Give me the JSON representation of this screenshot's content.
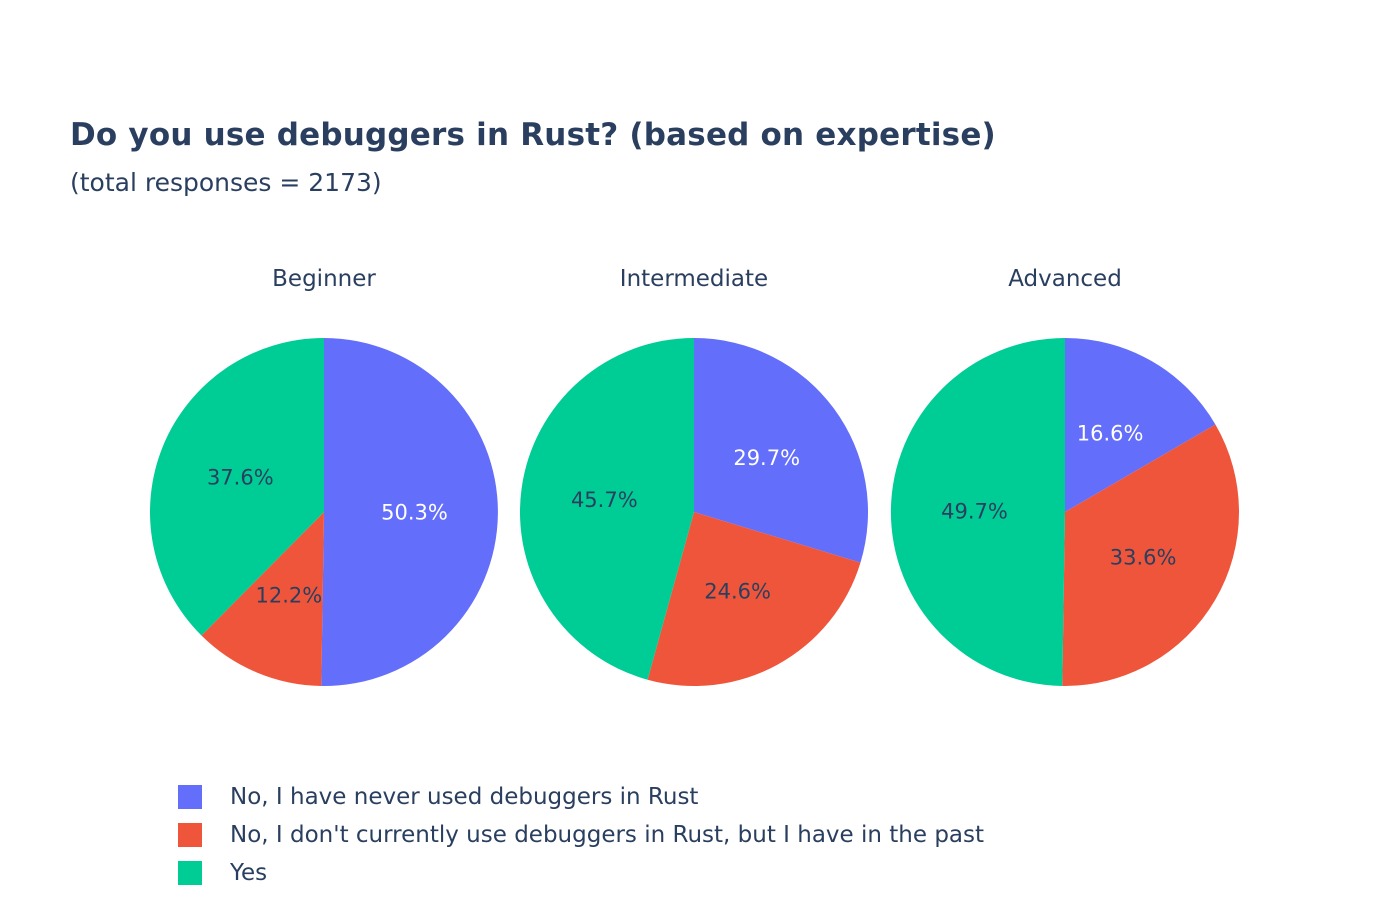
{
  "chart_data": {
    "type": "pie",
    "title": "Do you use debuggers in Rust? (based on expertise)",
    "subtitle": "(total responses = 2173)",
    "legend_position": "bottom-left",
    "categories": [
      "No, I have never used debuggers in Rust",
      "No, I don't currently use debuggers in Rust, but I have in the past",
      "Yes"
    ],
    "colors": [
      "#636efa",
      "#ef553b",
      "#00cc96"
    ],
    "label_colors": [
      "#ffffff",
      "#2a3f5f",
      "#2a3f5f"
    ],
    "pies": [
      {
        "name": "Beginner",
        "values": [
          50.3,
          12.2,
          37.6
        ],
        "labels": [
          "50.3%",
          "12.2%",
          "37.6%"
        ]
      },
      {
        "name": "Intermediate",
        "values": [
          29.7,
          24.6,
          45.7
        ],
        "labels": [
          "29.7%",
          "24.6%",
          "45.7%"
        ]
      },
      {
        "name": "Advanced",
        "values": [
          16.6,
          33.6,
          49.7
        ],
        "labels": [
          "16.6%",
          "33.6%",
          "49.7%"
        ]
      }
    ]
  }
}
